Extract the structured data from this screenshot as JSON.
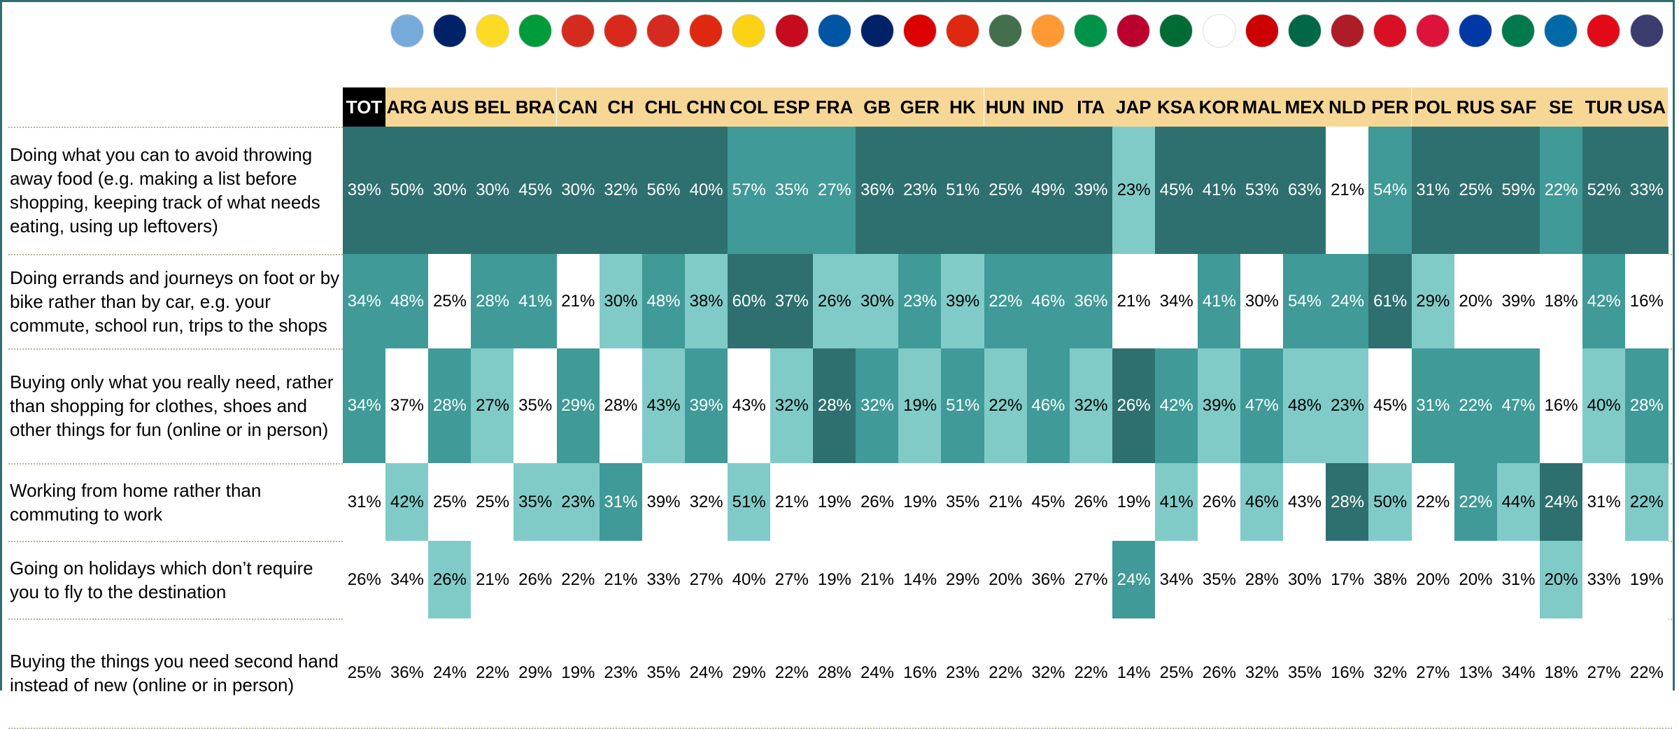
{
  "table": {
    "columns": [
      "TOT",
      "ARG",
      "AUS",
      "BEL",
      "BRA",
      "CAN",
      "CH",
      "CHL",
      "CHN",
      "COL",
      "ESP",
      "FRA",
      "GB",
      "GER",
      "HK",
      "HUN",
      "IND",
      "ITA",
      "JAP",
      "KSA",
      "KOR",
      "MAL",
      "MEX",
      "NLD",
      "PER",
      "POL",
      "RUS",
      "SAF",
      "SE",
      "TUR",
      "USA"
    ],
    "palette": [
      "#ffffff",
      "#80cbc8",
      "#3f9a98",
      "#2e7070"
    ],
    "header_color": "#f6d796",
    "total_header_color": "#000000",
    "rows": [
      {
        "label": "Doing what you can to avoid throwing away food (e.g. making a list before shopping, keeping track of what needs eating, using up leftovers)",
        "cells": [
          "39%",
          "50%",
          "30%",
          "30%",
          "45%",
          "30%",
          "32%",
          "56%",
          "40%",
          "57%",
          "35%",
          "27%",
          "36%",
          "23%",
          "51%",
          "25%",
          "49%",
          "39%",
          "23%",
          "45%",
          "41%",
          "53%",
          "63%",
          "21%",
          "54%",
          "31%",
          "25%",
          "59%",
          "22%",
          "52%",
          "33%"
        ],
        "shades": [
          3,
          3,
          3,
          3,
          3,
          3,
          3,
          3,
          3,
          2,
          2,
          2,
          3,
          3,
          3,
          3,
          3,
          3,
          1,
          3,
          3,
          3,
          3,
          0,
          2,
          3,
          3,
          3,
          2,
          3,
          3
        ]
      },
      {
        "label": "Doing errands and journeys on foot or by bike rather than by car, e.g. your commute, school run, trips to the shops",
        "cells": [
          "34%",
          "48%",
          "25%",
          "28%",
          "41%",
          "21%",
          "30%",
          "48%",
          "38%",
          "60%",
          "37%",
          "26%",
          "30%",
          "23%",
          "39%",
          "22%",
          "46%",
          "36%",
          "21%",
          "34%",
          "41%",
          "30%",
          "54%",
          "24%",
          "61%",
          "29%",
          "20%",
          "39%",
          "18%",
          "42%",
          "16%"
        ],
        "shades": [
          2,
          2,
          0,
          2,
          2,
          0,
          1,
          2,
          1,
          3,
          3,
          1,
          1,
          2,
          1,
          2,
          2,
          2,
          0,
          0,
          2,
          0,
          2,
          2,
          3,
          1,
          0,
          0,
          0,
          2,
          0
        ]
      },
      {
        "label": "Buying only what you really need, rather than shopping for clothes, shoes and other things for fun (online or in person)",
        "cells": [
          "34%",
          "37%",
          "28%",
          "27%",
          "35%",
          "29%",
          "28%",
          "43%",
          "39%",
          "43%",
          "32%",
          "28%",
          "32%",
          "19%",
          "51%",
          "22%",
          "46%",
          "32%",
          "26%",
          "42%",
          "39%",
          "47%",
          "48%",
          "23%",
          "45%",
          "31%",
          "22%",
          "47%",
          "16%",
          "40%",
          "28%"
        ],
        "shades": [
          2,
          0,
          2,
          1,
          0,
          2,
          0,
          1,
          2,
          0,
          1,
          3,
          2,
          1,
          2,
          1,
          2,
          1,
          3,
          2,
          1,
          2,
          1,
          1,
          0,
          2,
          2,
          2,
          0,
          1,
          2
        ]
      },
      {
        "label": "Working from home rather than commuting to work",
        "cells": [
          "31%",
          "42%",
          "25%",
          "25%",
          "35%",
          "23%",
          "31%",
          "39%",
          "32%",
          "51%",
          "21%",
          "19%",
          "26%",
          "19%",
          "35%",
          "21%",
          "45%",
          "26%",
          "19%",
          "41%",
          "26%",
          "46%",
          "43%",
          "28%",
          "50%",
          "22%",
          "22%",
          "44%",
          "24%",
          "31%",
          "22%"
        ],
        "shades": [
          0,
          1,
          0,
          0,
          1,
          1,
          2,
          0,
          0,
          1,
          0,
          0,
          0,
          0,
          0,
          0,
          0,
          0,
          0,
          1,
          0,
          1,
          0,
          3,
          1,
          0,
          2,
          1,
          3,
          0,
          1
        ]
      },
      {
        "label": "Going on holidays which don’t require you to fly to the destination",
        "cells": [
          "26%",
          "34%",
          "26%",
          "21%",
          "26%",
          "22%",
          "21%",
          "33%",
          "27%",
          "40%",
          "27%",
          "19%",
          "21%",
          "14%",
          "29%",
          "20%",
          "36%",
          "27%",
          "24%",
          "34%",
          "35%",
          "28%",
          "30%",
          "17%",
          "38%",
          "20%",
          "20%",
          "31%",
          "20%",
          "33%",
          "19%"
        ],
        "shades": [
          0,
          0,
          1,
          0,
          0,
          0,
          0,
          0,
          0,
          0,
          0,
          0,
          0,
          0,
          0,
          0,
          0,
          0,
          2,
          0,
          0,
          0,
          0,
          0,
          0,
          0,
          0,
          0,
          1,
          0,
          0
        ]
      },
      {
        "label": "Buying the things you need second hand instead of new (online or in person)",
        "cells": [
          "25%",
          "36%",
          "24%",
          "22%",
          "29%",
          "19%",
          "23%",
          "35%",
          "24%",
          "29%",
          "22%",
          "28%",
          "24%",
          "16%",
          "23%",
          "22%",
          "32%",
          "22%",
          "14%",
          "25%",
          "26%",
          "32%",
          "35%",
          "16%",
          "32%",
          "27%",
          "13%",
          "34%",
          "18%",
          "27%",
          "22%"
        ],
        "shades": [
          0,
          0,
          0,
          0,
          0,
          0,
          0,
          0,
          0,
          0,
          0,
          0,
          0,
          0,
          0,
          0,
          0,
          0,
          0,
          0,
          0,
          0,
          0,
          0,
          0,
          0,
          0,
          0,
          0,
          0,
          0
        ]
      }
    ]
  }
}
